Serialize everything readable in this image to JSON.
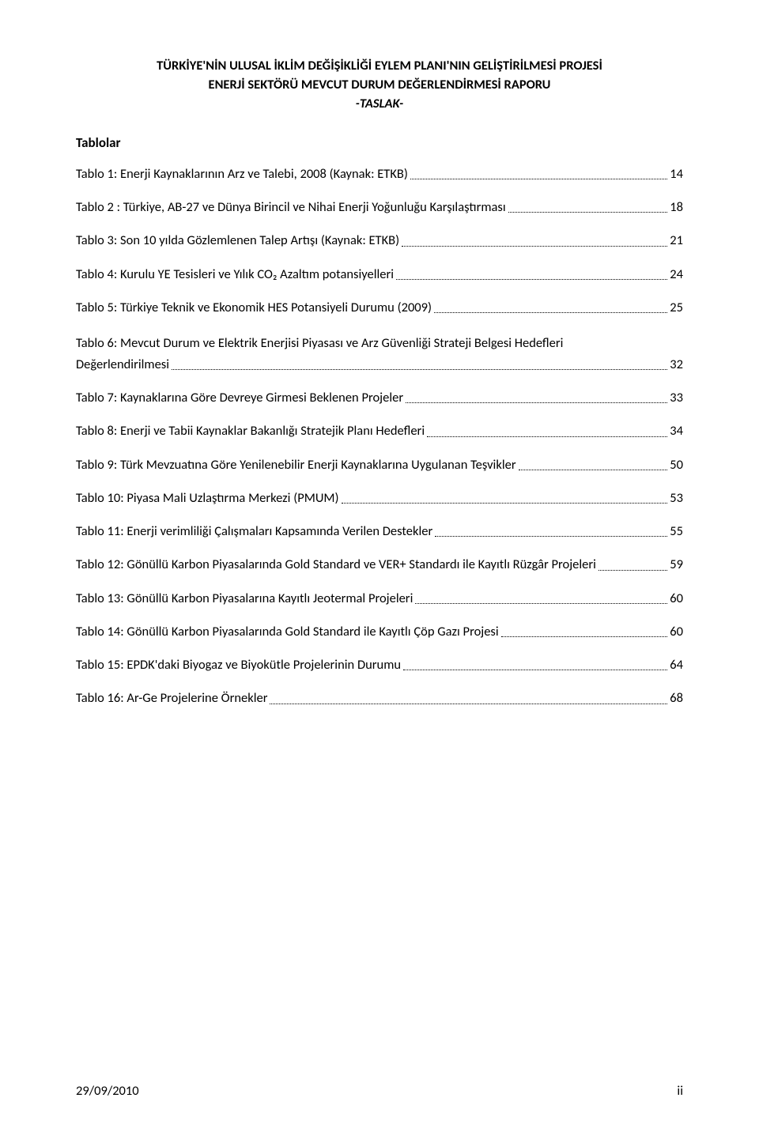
{
  "header": {
    "line1": "TÜRKİYE'NİN ULUSAL İKLİM DEĞİŞİKLİĞİ EYLEM PLANI'NIN GELİŞTİRİLMESİ PROJESİ",
    "line2": "ENERJİ SEKTÖRÜ MEVCUT DURUM DEĞERLENDİRMESİ RAPORU",
    "line3": "-TASLAK-"
  },
  "section_heading": "Tablolar",
  "toc": [
    {
      "label": "Tablo 1: Enerji Kaynaklarının Arz ve Talebi, 2008 (Kaynak: ETKB)",
      "page": "14"
    },
    {
      "label": "Tablo 2 : Türkiye, AB-27 ve Dünya Birincil ve Nihai Enerji Yoğunluğu Karşılaştırması",
      "page": "18"
    },
    {
      "label": "Tablo 3: Son 10 yılda Gözlemlenen Talep Artışı (Kaynak: ETKB)",
      "page": "21"
    },
    {
      "label": "Tablo 4: Kurulu YE Tesisleri ve Yılık CO₂ Azaltım potansiyelleri",
      "page": "24"
    },
    {
      "label": "Tablo 5: Türkiye Teknik ve Ekonomik HES Potansiyeli Durumu (2009)",
      "page": "25"
    },
    {
      "label_lines": [
        "Tablo 6: Mevcut Durum ve Elektrik Enerjisi Piyasası ve Arz Güvenliği Strateji Belgesi Hedefleri",
        "Değerlendirilmesi"
      ],
      "page": "32"
    },
    {
      "label": "Tablo 7: Kaynaklarına Göre Devreye Girmesi Beklenen Projeler",
      "page": "33"
    },
    {
      "label": "Tablo 8: Enerji ve Tabii Kaynaklar Bakanlığı Stratejik Planı Hedefleri",
      "page": "34"
    },
    {
      "label": "Tablo 9: Türk Mevzuatına Göre Yenilenebilir Enerji Kaynaklarına Uygulanan Teşvikler",
      "page": "50"
    },
    {
      "label": "Tablo 10: Piyasa Mali Uzlaştırma Merkezi (PMUM)",
      "page": "53"
    },
    {
      "label": "Tablo 11: Enerji verimliliği Çalışmaları Kapsamında Verilen Destekler",
      "page": "55"
    },
    {
      "label": "Tablo 12: Gönüllü Karbon Piyasalarında Gold Standard ve VER+ Standardı ile Kayıtlı Rüzgâr Projeleri",
      "page": "59"
    },
    {
      "label": "Tablo 13: Gönüllü Karbon Piyasalarına Kayıtlı Jeotermal Projeleri",
      "page": "60"
    },
    {
      "label": "Tablo 14: Gönüllü Karbon Piyasalarında Gold Standard ile Kayıtlı Çöp Gazı Projesi",
      "page": "60"
    },
    {
      "label": "Tablo 15: EPDK'daki Biyogaz ve Biyokütle Projelerinin Durumu",
      "page": "64"
    },
    {
      "label": "Tablo 16:  Ar-Ge Projelerine Örnekler",
      "page": "68"
    }
  ],
  "footer": {
    "date": "29/09/2010",
    "page_num": "ii"
  }
}
